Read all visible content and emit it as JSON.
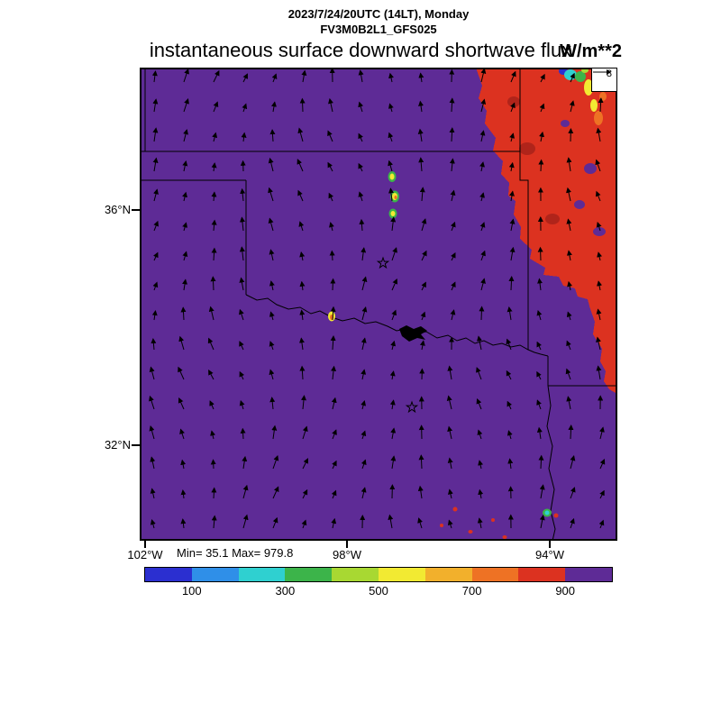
{
  "header": {
    "datetime_line": "2023/7/24/20UTC (14LT), Monday",
    "model_line": "FV3M0B2L1_GFS025",
    "main_title": "instantaneous surface downward shortwave flux",
    "units_label": "W/m**2"
  },
  "stats": {
    "minmax_label": "Min= 35.1 Max= 979.8"
  },
  "chart_data": {
    "type": "heatmap",
    "title": "instantaneous surface downward shortwave flux",
    "subtitle_lines": [
      "2023/7/24/20UTC (14LT), Monday",
      "FV3M0B2L1_GFS025"
    ],
    "units": "W/m**2",
    "stat_min": 35.1,
    "stat_max": 979.8,
    "contour_levels": [
      100,
      200,
      300,
      400,
      500,
      600,
      700,
      800,
      900
    ],
    "labeled_levels": [
      100,
      300,
      500,
      700,
      900
    ],
    "level_colors": [
      "#2b2fd0",
      "#2f8fe8",
      "#2fd0d0",
      "#3cb44a",
      "#a8d832",
      "#f2ea32",
      "#f2b02c",
      "#ee7224",
      "#dc3220",
      "#5e2b96"
    ],
    "x_axis": {
      "label_ticks": [
        "102°W",
        "98°W",
        "94°W"
      ]
    },
    "y_axis": {
      "label_ticks": [
        "36°N",
        "32°N"
      ]
    },
    "wind_vector_reference": 8,
    "field_description": {
      "dominant_fill": "> 900 W/m**2 (purple) clear-sky flux over most of the Texas-Oklahoma domain",
      "northeast_region": "700-900 W/m**2 (red, with dark-red and orange patches) cloud-reduced flux in the northeast corner",
      "low_flux_spots": "isolated 100-700 W/m**2 convective cloud spots (cyan/green/yellow/orange) in Kansas, along the Red River and in northeast Texas",
      "overlay": "wind vector field of small black arrows pointing generally north-northeastward; reference vector = 8"
    }
  }
}
